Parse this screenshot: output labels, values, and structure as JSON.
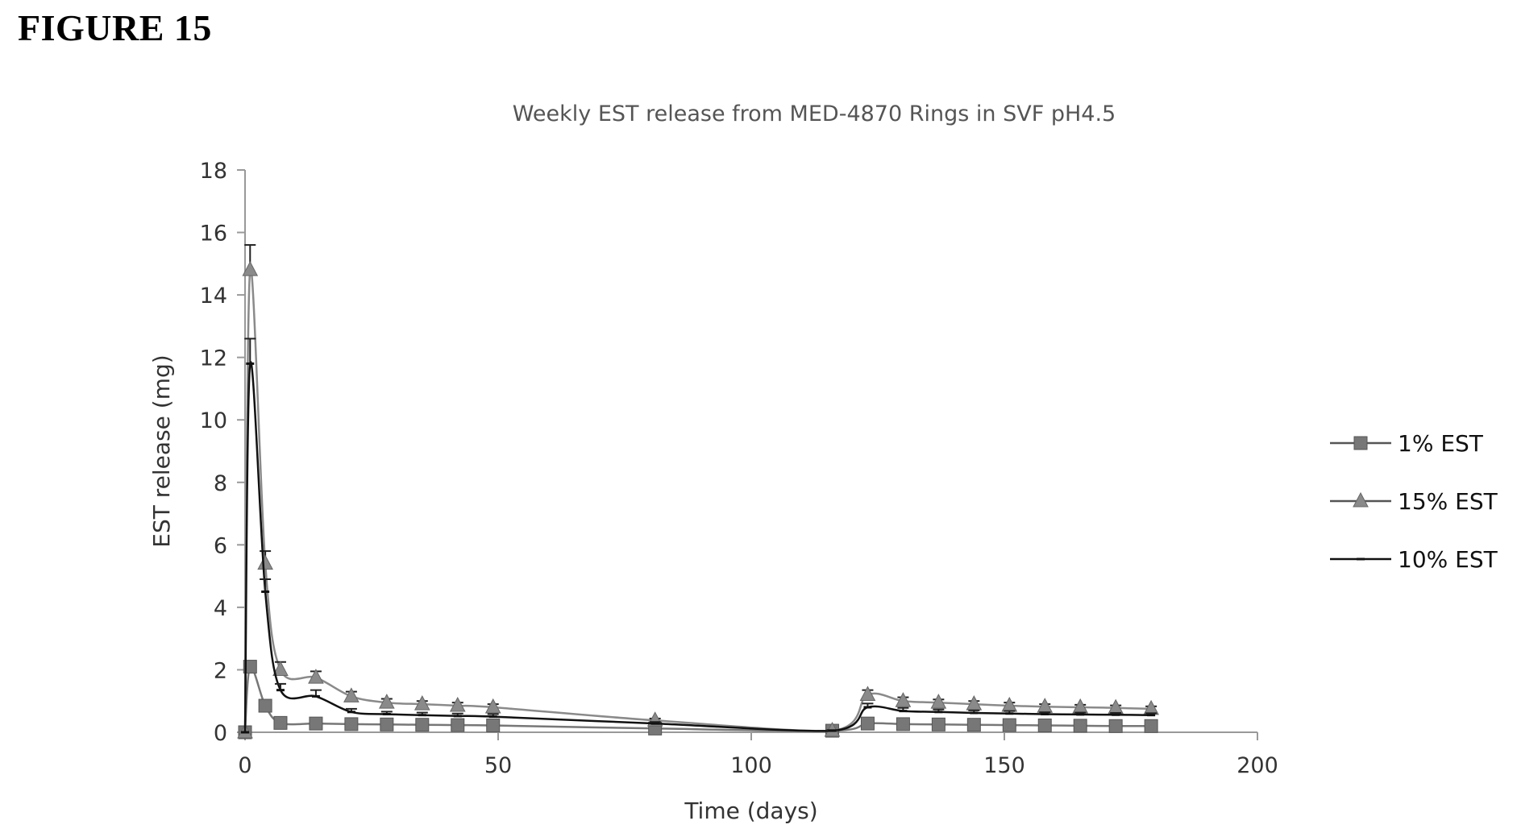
{
  "figure_label": "FIGURE 15",
  "chart_data": {
    "type": "line",
    "title": "Weekly EST release from MED-4870 Rings in SVF pH4.5",
    "xlabel": "Time (days)",
    "ylabel": "EST release (mg)",
    "xlim": [
      0,
      200
    ],
    "ylim": [
      0,
      18
    ],
    "xticks": [
      0,
      50,
      100,
      150,
      200
    ],
    "yticks": [
      0,
      2,
      4,
      6,
      8,
      10,
      12,
      14,
      16,
      18
    ],
    "grid": false,
    "legend_position": "right",
    "x": [
      0,
      1,
      4,
      7,
      14,
      21,
      28,
      35,
      42,
      49,
      81,
      116,
      123,
      130,
      137,
      144,
      151,
      158,
      165,
      172,
      179
    ],
    "series": [
      {
        "name": "1% EST",
        "marker": "square",
        "color": "#777777",
        "values": [
          0,
          2.1,
          0.85,
          0.3,
          0.28,
          0.26,
          0.25,
          0.24,
          0.23,
          0.22,
          0.12,
          0.05,
          0.28,
          0.26,
          0.25,
          0.24,
          0.23,
          0.22,
          0.21,
          0.2,
          0.2
        ]
      },
      {
        "name": "15% EST",
        "marker": "triangle",
        "color": "#8a8a8a",
        "values": [
          0,
          14.8,
          5.4,
          2.0,
          1.75,
          1.15,
          0.95,
          0.9,
          0.85,
          0.8,
          0.38,
          0.05,
          1.2,
          1.0,
          0.95,
          0.9,
          0.85,
          0.82,
          0.8,
          0.78,
          0.75
        ],
        "error": [
          0,
          0.8,
          0.4,
          0.25,
          0.2,
          0.15,
          0.12,
          0.1,
          0.1,
          0.1,
          0.06,
          0.02,
          0.15,
          0.12,
          0.1,
          0.1,
          0.1,
          0.08,
          0.08,
          0.08,
          0.08
        ]
      },
      {
        "name": "10% EST",
        "marker": "dash",
        "color": "#111111",
        "values": [
          0,
          11.8,
          4.5,
          1.35,
          1.15,
          0.65,
          0.58,
          0.55,
          0.52,
          0.5,
          0.28,
          0.05,
          0.8,
          0.68,
          0.65,
          0.62,
          0.6,
          0.58,
          0.57,
          0.56,
          0.55
        ],
        "error": [
          0,
          0.8,
          0.4,
          0.2,
          0.2,
          0.1,
          0.08,
          0.08,
          0.08,
          0.08,
          0.05,
          0.02,
          0.12,
          0.1,
          0.08,
          0.08,
          0.08,
          0.06,
          0.06,
          0.06,
          0.06
        ]
      }
    ]
  }
}
